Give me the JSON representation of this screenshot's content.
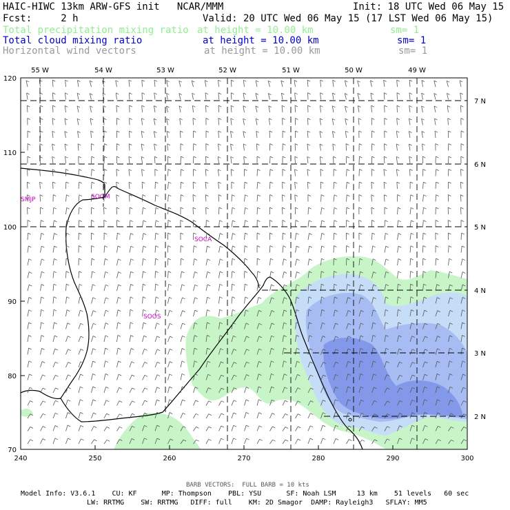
{
  "header": {
    "title_left": "HAIC-HIWC 13km ARW-GFS init   NCAR/MMM",
    "init": "Init: 18 UTC Wed 06 May 15",
    "fcst": "Fcst:     2 h",
    "valid": "Valid: 20 UTC Wed 06 May 15 (17 LST Wed 06 May 15)",
    "rows": [
      {
        "field": "Total precipitation mixing ratio",
        "level": "at height = 10.00 km",
        "sm": "sm= 1",
        "color": "#90ee90"
      },
      {
        "field": "Total cloud mixing ratio",
        "level": "at height = 10.00 km",
        "sm": "sm= 1",
        "color": "#0000cc"
      },
      {
        "field": "Horizontal wind vectors",
        "level": "at height = 10.00 km",
        "sm": "sm= 1",
        "color": "#999999"
      }
    ]
  },
  "map": {
    "top_lon_labels": [
      "55 W",
      "54 W",
      "53 W",
      "52 W",
      "51 W",
      "50 W",
      "49 W"
    ],
    "right_lat_labels": [
      "7 N",
      "6 N",
      "5 N",
      "4 N",
      "3 N",
      "2 N"
    ],
    "left_axis_labels": [
      "120",
      "110",
      "100",
      "90",
      "80",
      "70"
    ],
    "bottom_axis_labels": [
      "240",
      "250",
      "260",
      "270",
      "280",
      "290",
      "300"
    ],
    "stations": [
      "SMJP",
      "SOGM",
      "SOCA",
      "SOOS"
    ],
    "colors": {
      "precip": "#c8f5c8",
      "cloud_light": "#c6ddf7",
      "cloud_mid": "#a6bcf2",
      "cloud_dark": "#8498ea",
      "coast": "#000000",
      "station": "#cc00cc",
      "barb": "#555555"
    }
  },
  "footer": {
    "barb_note": "BARB VECTORS:  FULL BARB = 10 kts",
    "line1": "Model Info: V3.6.1    CU: KF      MP: Thompson    PBL: YSU      SF: Noah LSM     13 km    51 levels   60 sec",
    "line2": "LW: RRTMG    SW: RRTMG   DIFF: full    KM: 2D Smagor  DAMP: Rayleigh3   SFLAY: MM5"
  }
}
